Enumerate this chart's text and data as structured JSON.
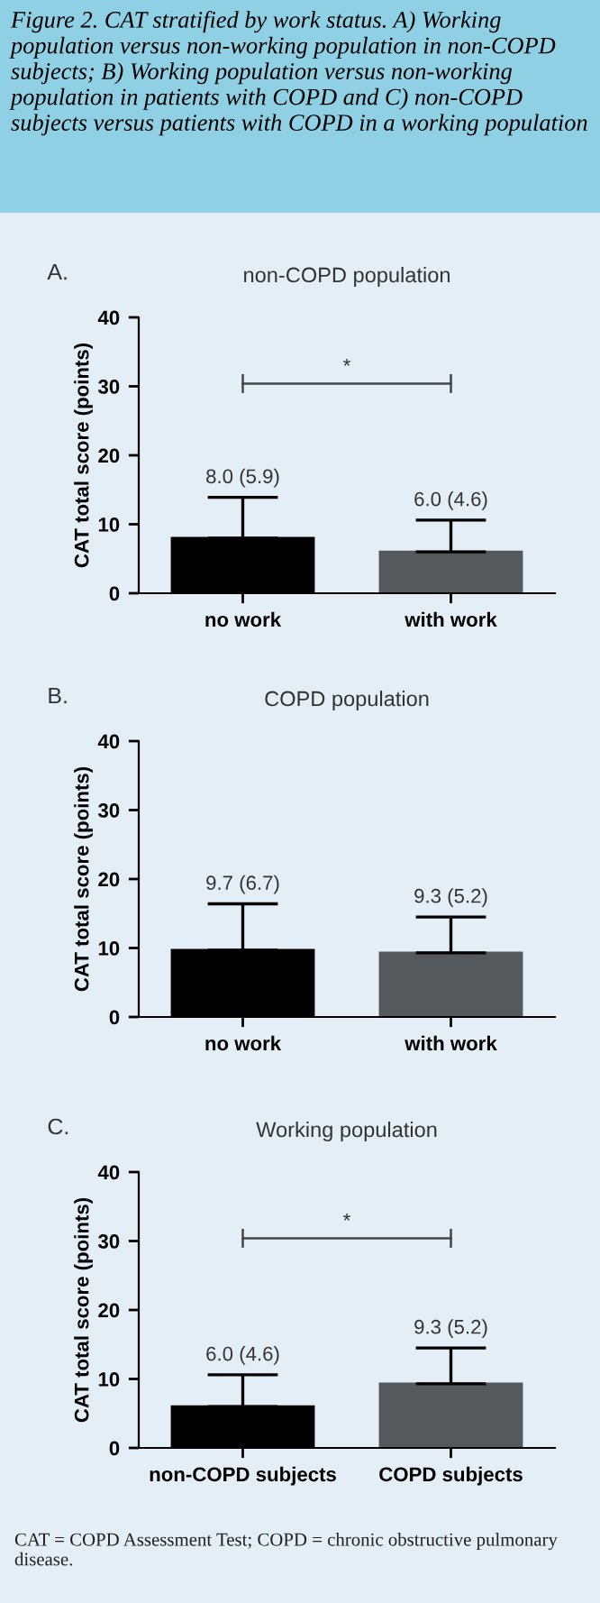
{
  "chart_data": [
    {
      "type": "other",
      "annotations": [
        "Figure 2. CAT stratified by work status. A) Working population versus non-working population in non-COPD subjects; B) Working population versus non-working population in patients with COPD and C) non-COPD subjects versus patients with COPD in a working population"
      ]
    },
    {
      "type": "bar",
      "subtitle": "A.",
      "title": "non-COPD population",
      "ylabel": "CAT total score (points)",
      "categories": [
        "no work",
        "with work"
      ],
      "values": [
        8.0,
        6.0
      ],
      "colors": [
        "#000000",
        "#55595b"
      ],
      "errors": [
        [
          8.0,
          13.9
        ],
        [
          6.0,
          10.6
        ]
      ],
      "value_labels": [
        "8.0 (5.9)",
        "6.0 (4.6)"
      ],
      "ylim": [
        0,
        40
      ],
      "yticks": [
        0,
        10,
        20,
        30,
        40
      ],
      "grid": false,
      "annotations": [
        "*"
      ]
    },
    {
      "type": "bar",
      "subtitle": "B.",
      "title": "COPD population",
      "ylabel": "CAT total score (points)",
      "categories": [
        "no work",
        "with work"
      ],
      "values": [
        9.7,
        9.3
      ],
      "colors": [
        "#000000",
        "#55595b"
      ],
      "errors": [
        [
          9.7,
          16.4
        ],
        [
          9.3,
          14.5
        ]
      ],
      "value_labels": [
        "9.7 (6.7)",
        "9.3 (5.2)"
      ],
      "ylim": [
        0,
        40
      ],
      "yticks": [
        0,
        10,
        20,
        30,
        40
      ],
      "grid": false
    },
    {
      "type": "bar",
      "subtitle": "C.",
      "title": "Working population",
      "ylabel": "CAT total score (points)",
      "categories": [
        "non-COPD subjects",
        "COPD subjects"
      ],
      "values": [
        6.0,
        9.3
      ],
      "colors": [
        "#000000",
        "#55595b"
      ],
      "errors": [
        [
          6.0,
          10.6
        ],
        [
          9.3,
          14.5
        ]
      ],
      "value_labels": [
        "6.0 (4.6)",
        "9.3 (5.2)"
      ],
      "ylim": [
        0,
        40
      ],
      "yticks": [
        0,
        10,
        20,
        30,
        40
      ],
      "grid": false,
      "annotations": [
        "*"
      ]
    },
    {
      "type": "other",
      "annotations": [
        "CAT = COPD Assessment Test; COPD = chronic obstructive pulmonary disease."
      ]
    }
  ]
}
